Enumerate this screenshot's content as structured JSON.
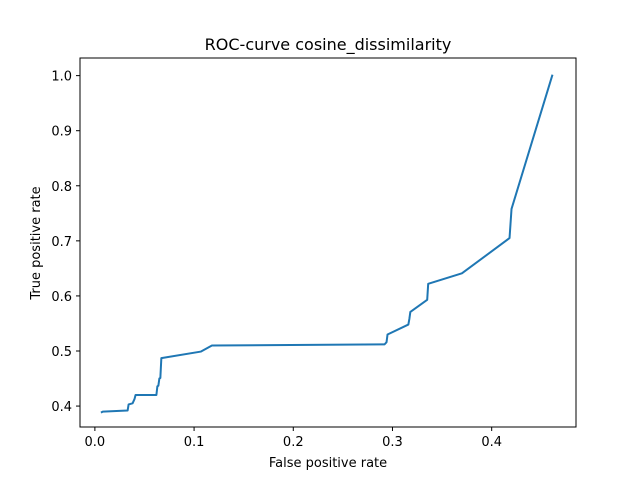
{
  "chart_data": {
    "type": "line",
    "title": "ROC-curve cosine_dissimilarity",
    "xlabel": "False positive rate",
    "ylabel": "True positive rate",
    "xlim": [
      -0.015,
      0.485
    ],
    "ylim": [
      0.362,
      1.032
    ],
    "xticks": [
      0.0,
      0.1,
      0.2,
      0.3,
      0.4
    ],
    "xtick_labels": [
      "0.0",
      "0.1",
      "0.2",
      "0.3",
      "0.4"
    ],
    "yticks": [
      0.4,
      0.5,
      0.6,
      0.7,
      0.8,
      0.9,
      1.0
    ],
    "ytick_labels": [
      "0.4",
      "0.5",
      "0.6",
      "0.7",
      "0.8",
      "0.9",
      "1.0"
    ],
    "grid": false,
    "line_color": "#1f77b4",
    "series": [
      {
        "x": [
          0.007,
          0.008,
          0.033,
          0.034,
          0.038,
          0.04,
          0.041,
          0.062,
          0.063,
          0.064,
          0.065,
          0.066,
          0.067,
          0.107,
          0.118,
          0.292,
          0.294,
          0.295,
          0.316,
          0.317,
          0.318,
          0.335,
          0.336,
          0.37,
          0.418,
          0.42,
          0.461
        ],
        "y": [
          0.389,
          0.39,
          0.392,
          0.403,
          0.405,
          0.413,
          0.42,
          0.42,
          0.436,
          0.437,
          0.45,
          0.451,
          0.487,
          0.499,
          0.51,
          0.512,
          0.516,
          0.53,
          0.548,
          0.558,
          0.571,
          0.593,
          0.622,
          0.641,
          0.705,
          0.758,
          1.0
        ]
      }
    ]
  }
}
